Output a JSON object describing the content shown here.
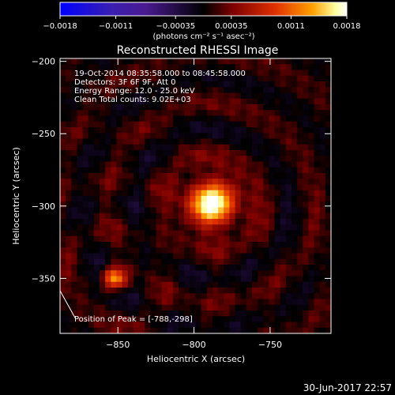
{
  "chart_data": {
    "type": "heatmap",
    "title": "Reconstructed RHESSI Image",
    "xlabel": "Heliocentric X (arcsec)",
    "ylabel": "Heliocentric Y (arcsec)",
    "xlim": [
      -888,
      -710
    ],
    "ylim": [
      -388,
      -198
    ],
    "x_ticks": [
      -850,
      -800,
      -750
    ],
    "x_tick_labels": [
      "−850",
      "−800",
      "−750"
    ],
    "y_ticks": [
      -200,
      -250,
      -300,
      -350
    ],
    "y_tick_labels": [
      "−200",
      "−250",
      "−300",
      "−350"
    ],
    "colorbar": {
      "min": -0.0018,
      "max": 0.0018,
      "ticks": [
        -0.0018,
        -0.0011,
        -0.00035,
        0.00035,
        0.0011,
        0.0018
      ],
      "tick_labels": [
        "−0.0018",
        "−0.0011",
        "−0.00035",
        "0.00035",
        "0.0011",
        "0.0018"
      ],
      "unit_label": "(photons cm⁻² s⁻¹ asec⁻²)",
      "colors": [
        "#0000ff",
        "#3a1fb0",
        "#4a1a90",
        "#000000",
        "#7a0000",
        "#e03000",
        "#ffa000",
        "#ffffa0",
        "#ffffff"
      ]
    },
    "annotations": [
      "19-Oct-2014 08:35:58.000 to 08:45:58.000",
      "Detectors: 3F 6F 9F, Att 0",
      "Energy Range: 12.0 - 25.0 keV",
      "Clean    Total counts: 9.02E+03"
    ],
    "peak_label": "Position of Peak = [-788,-298]",
    "peak_x": -788,
    "peak_y": -298,
    "sources": [
      {
        "x": -788,
        "y": -298,
        "intensity": 0.0018
      },
      {
        "x": -852,
        "y": -350,
        "intensity": 0.0011
      }
    ],
    "grid": false
  },
  "footer": {
    "timestamp": "30-Jun-2017 22:57"
  }
}
